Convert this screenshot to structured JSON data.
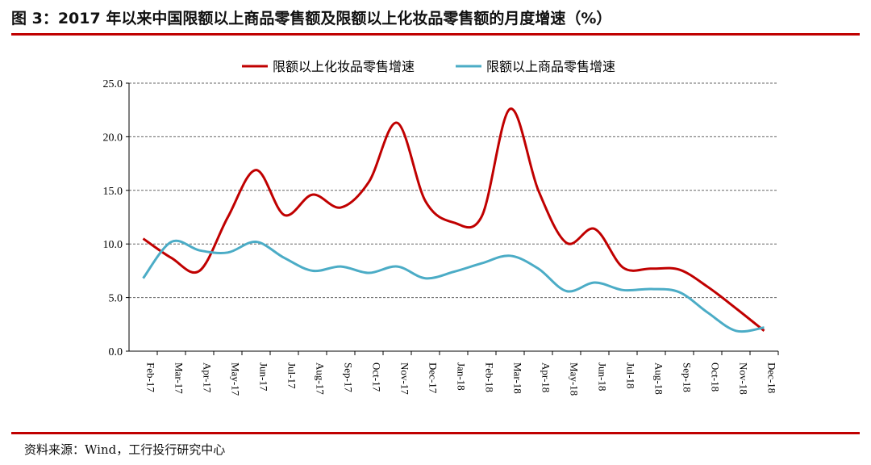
{
  "title": "图 3：2017 年以来中国限额以上商品零售额及限额以上化妆品零售额的月度增速（%）",
  "source": "资料来源：Wind，工行投行研究中心",
  "chart_data": {
    "type": "line",
    "categories": [
      "Feb-17",
      "Mar-17",
      "Apr-17",
      "May-17",
      "Jun-17",
      "Jul-17",
      "Aug-17",
      "Sep-17",
      "Oct-17",
      "Nov-17",
      "Dec-17",
      "Jan-18",
      "Feb-18",
      "Mar-18",
      "Apr-18",
      "May-18",
      "Jun-18",
      "Jul-18",
      "Aug-18",
      "Sep-18",
      "Oct-18",
      "Nov-18",
      "Dec-18"
    ],
    "series": [
      {
        "name": "限额以上化妆品零售增速",
        "color": "#c00000",
        "values": [
          10.5,
          8.7,
          7.5,
          12.5,
          16.9,
          12.7,
          14.6,
          13.4,
          15.8,
          21.3,
          14.0,
          12.0,
          12.6,
          22.6,
          15.0,
          10.1,
          11.4,
          7.8,
          7.7,
          7.6,
          6.0,
          4.0,
          1.9
        ]
      },
      {
        "name": "限额以上商品零售增速",
        "color": "#4bacc6",
        "values": [
          6.8,
          10.2,
          9.4,
          9.2,
          10.2,
          8.7,
          7.5,
          7.9,
          7.3,
          7.9,
          6.8,
          7.4,
          8.2,
          8.9,
          7.7,
          5.6,
          6.4,
          5.7,
          5.8,
          5.5,
          3.6,
          1.9,
          2.2
        ]
      }
    ],
    "yticks": [
      "0.0",
      "5.0",
      "10.0",
      "15.0",
      "20.0",
      "25.0"
    ],
    "ylim": [
      0,
      25
    ],
    "grid": true,
    "legend": "top"
  }
}
